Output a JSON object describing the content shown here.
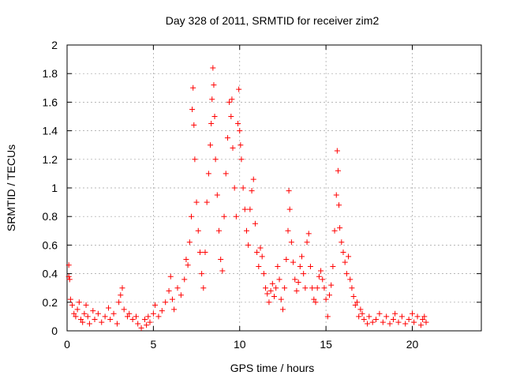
{
  "chart_data": {
    "type": "scatter",
    "title": "Day 328 of 2011, SRMTID for receiver zim2",
    "xlabel": "GPS time / hours",
    "ylabel": "SRMTID / TECUs",
    "xlim": [
      0,
      24
    ],
    "ylim": [
      0,
      2
    ],
    "xticks": [
      0,
      5,
      10,
      15,
      20
    ],
    "yticks": [
      0,
      0.2,
      0.4,
      0.6,
      0.8,
      1,
      1.2,
      1.4,
      1.6,
      1.8,
      2
    ],
    "xtick_labels": [
      "0",
      "5",
      "10",
      "15",
      "20"
    ],
    "ytick_labels": [
      "0",
      "0.2",
      "0.4",
      "0.6",
      "0.8",
      "1",
      "1.2",
      "1.4",
      "1.6",
      "1.8",
      "2"
    ],
    "grid": true,
    "marker": "+",
    "color": "#ff0000",
    "series": [
      {
        "name": "SRMTID",
        "points": [
          [
            0.1,
            0.46
          ],
          [
            0.1,
            0.38
          ],
          [
            0.15,
            0.36
          ],
          [
            0.2,
            0.22
          ],
          [
            0.3,
            0.18
          ],
          [
            0.4,
            0.12
          ],
          [
            0.5,
            0.1
          ],
          [
            0.6,
            0.15
          ],
          [
            0.7,
            0.2
          ],
          [
            0.8,
            0.08
          ],
          [
            0.9,
            0.06
          ],
          [
            1.0,
            0.12
          ],
          [
            1.1,
            0.18
          ],
          [
            1.2,
            0.1
          ],
          [
            1.3,
            0.05
          ],
          [
            1.5,
            0.14
          ],
          [
            1.6,
            0.08
          ],
          [
            1.8,
            0.12
          ],
          [
            2.0,
            0.06
          ],
          [
            2.2,
            0.1
          ],
          [
            2.4,
            0.16
          ],
          [
            2.5,
            0.08
          ],
          [
            2.7,
            0.12
          ],
          [
            2.9,
            0.05
          ],
          [
            3.0,
            0.2
          ],
          [
            3.1,
            0.25
          ],
          [
            3.2,
            0.3
          ],
          [
            3.3,
            0.15
          ],
          [
            3.5,
            0.1
          ],
          [
            3.6,
            0.12
          ],
          [
            3.8,
            0.08
          ],
          [
            4.0,
            0.1
          ],
          [
            4.1,
            0.05
          ],
          [
            4.3,
            0.02
          ],
          [
            4.5,
            0.08
          ],
          [
            4.6,
            0.04
          ],
          [
            4.7,
            0.1
          ],
          [
            4.8,
            0.06
          ],
          [
            5.0,
            0.12
          ],
          [
            5.1,
            0.18
          ],
          [
            5.3,
            0.1
          ],
          [
            5.5,
            0.14
          ],
          [
            5.7,
            0.2
          ],
          [
            5.9,
            0.28
          ],
          [
            6.0,
            0.38
          ],
          [
            6.1,
            0.22
          ],
          [
            6.2,
            0.15
          ],
          [
            6.4,
            0.3
          ],
          [
            6.6,
            0.25
          ],
          [
            6.8,
            0.36
          ],
          [
            6.9,
            0.5
          ],
          [
            7.0,
            0.46
          ],
          [
            7.1,
            0.62
          ],
          [
            7.2,
            0.8
          ],
          [
            7.25,
            1.55
          ],
          [
            7.3,
            1.7
          ],
          [
            7.35,
            1.44
          ],
          [
            7.4,
            1.2
          ],
          [
            7.5,
            0.9
          ],
          [
            7.6,
            0.7
          ],
          [
            7.7,
            0.55
          ],
          [
            7.8,
            0.4
          ],
          [
            7.9,
            0.3
          ],
          [
            8.0,
            0.55
          ],
          [
            8.1,
            0.9
          ],
          [
            8.2,
            1.1
          ],
          [
            8.3,
            1.3
          ],
          [
            8.35,
            1.45
          ],
          [
            8.4,
            1.62
          ],
          [
            8.45,
            1.84
          ],
          [
            8.5,
            1.72
          ],
          [
            8.55,
            1.5
          ],
          [
            8.6,
            1.2
          ],
          [
            8.7,
            0.95
          ],
          [
            8.8,
            0.7
          ],
          [
            8.9,
            0.5
          ],
          [
            9.0,
            0.42
          ],
          [
            9.1,
            0.8
          ],
          [
            9.2,
            1.1
          ],
          [
            9.3,
            1.35
          ],
          [
            9.4,
            1.6
          ],
          [
            9.5,
            1.5
          ],
          [
            9.55,
            1.62
          ],
          [
            9.6,
            1.28
          ],
          [
            9.7,
            1.0
          ],
          [
            9.8,
            0.8
          ],
          [
            9.9,
            1.45
          ],
          [
            9.95,
            1.69
          ],
          [
            10.0,
            1.4
          ],
          [
            10.05,
            1.3
          ],
          [
            10.1,
            1.2
          ],
          [
            10.2,
            1.0
          ],
          [
            10.3,
            0.85
          ],
          [
            10.4,
            0.7
          ],
          [
            10.5,
            0.6
          ],
          [
            10.6,
            0.85
          ],
          [
            10.7,
            0.98
          ],
          [
            10.8,
            1.06
          ],
          [
            10.9,
            0.75
          ],
          [
            11.0,
            0.55
          ],
          [
            11.1,
            0.45
          ],
          [
            11.2,
            0.58
          ],
          [
            11.3,
            0.52
          ],
          [
            11.4,
            0.4
          ],
          [
            11.5,
            0.3
          ],
          [
            11.6,
            0.26
          ],
          [
            11.7,
            0.2
          ],
          [
            11.8,
            0.28
          ],
          [
            11.9,
            0.33
          ],
          [
            12.0,
            0.24
          ],
          [
            12.1,
            0.3
          ],
          [
            12.2,
            0.45
          ],
          [
            12.3,
            0.36
          ],
          [
            12.4,
            0.22
          ],
          [
            12.5,
            0.15
          ],
          [
            12.6,
            0.3
          ],
          [
            12.7,
            0.5
          ],
          [
            12.8,
            0.7
          ],
          [
            12.85,
            0.98
          ],
          [
            12.9,
            0.85
          ],
          [
            13.0,
            0.62
          ],
          [
            13.1,
            0.48
          ],
          [
            13.2,
            0.36
          ],
          [
            13.3,
            0.28
          ],
          [
            13.4,
            0.34
          ],
          [
            13.5,
            0.45
          ],
          [
            13.6,
            0.52
          ],
          [
            13.7,
            0.4
          ],
          [
            13.8,
            0.3
          ],
          [
            13.9,
            0.62
          ],
          [
            14.0,
            0.68
          ],
          [
            14.1,
            0.45
          ],
          [
            14.2,
            0.3
          ],
          [
            14.3,
            0.22
          ],
          [
            14.4,
            0.2
          ],
          [
            14.5,
            0.3
          ],
          [
            14.6,
            0.38
          ],
          [
            14.7,
            0.42
          ],
          [
            14.8,
            0.36
          ],
          [
            14.9,
            0.3
          ],
          [
            15.0,
            0.22
          ],
          [
            15.1,
            0.1
          ],
          [
            15.2,
            0.25
          ],
          [
            15.3,
            0.32
          ],
          [
            15.4,
            0.45
          ],
          [
            15.5,
            0.7
          ],
          [
            15.6,
            0.95
          ],
          [
            15.65,
            1.26
          ],
          [
            15.7,
            1.12
          ],
          [
            15.75,
            0.88
          ],
          [
            15.8,
            0.72
          ],
          [
            15.9,
            0.62
          ],
          [
            16.0,
            0.55
          ],
          [
            16.1,
            0.48
          ],
          [
            16.2,
            0.4
          ],
          [
            16.3,
            0.52
          ],
          [
            16.4,
            0.36
          ],
          [
            16.5,
            0.3
          ],
          [
            16.6,
            0.24
          ],
          [
            16.7,
            0.18
          ],
          [
            16.8,
            0.2
          ],
          [
            16.9,
            0.1
          ],
          [
            17.0,
            0.15
          ],
          [
            17.1,
            0.12
          ],
          [
            17.2,
            0.08
          ],
          [
            17.4,
            0.05
          ],
          [
            17.5,
            0.1
          ],
          [
            17.7,
            0.06
          ],
          [
            17.9,
            0.08
          ],
          [
            18.1,
            0.12
          ],
          [
            18.3,
            0.06
          ],
          [
            18.5,
            0.1
          ],
          [
            18.7,
            0.05
          ],
          [
            18.9,
            0.08
          ],
          [
            19.0,
            0.12
          ],
          [
            19.2,
            0.06
          ],
          [
            19.4,
            0.1
          ],
          [
            19.6,
            0.05
          ],
          [
            19.8,
            0.08
          ],
          [
            20.0,
            0.12
          ],
          [
            20.1,
            0.06
          ],
          [
            20.3,
            0.1
          ],
          [
            20.5,
            0.04
          ],
          [
            20.6,
            0.08
          ],
          [
            20.7,
            0.1
          ],
          [
            20.8,
            0.06
          ]
        ]
      }
    ]
  }
}
